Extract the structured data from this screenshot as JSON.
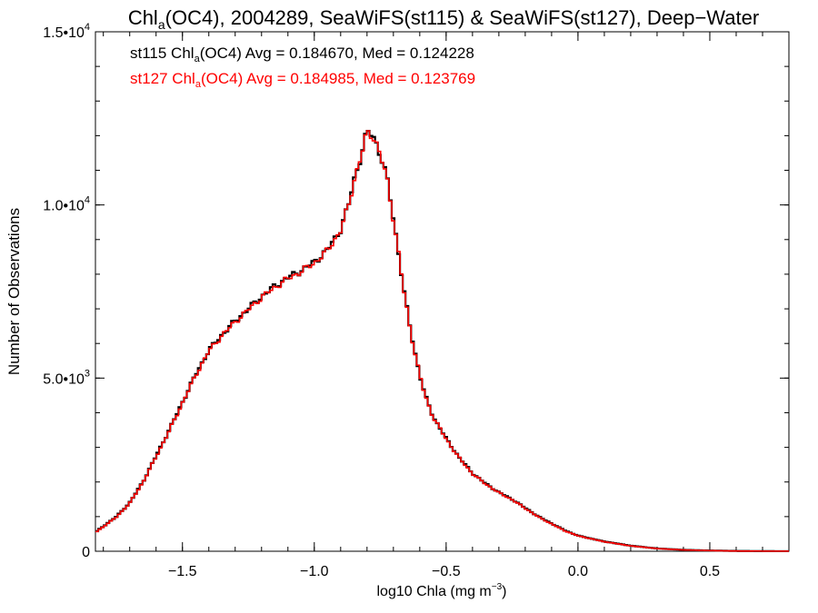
{
  "chart_data": {
    "type": "line",
    "title": {
      "pre": "Chl",
      "sub": "a",
      "post": "(OC4), 2004289, SeaWiFS(st115) & SeaWiFS(st127), Deep−Water"
    },
    "xlabel": {
      "pre": "log10 Chla (mg m",
      "sup": "−3",
      "post": ")"
    },
    "ylabel": "Number of Observations",
    "xlim": [
      -1.83,
      0.8
    ],
    "ylim": [
      0,
      15000
    ],
    "x_ticks": [
      {
        "v": -1.5,
        "label": "−1.5"
      },
      {
        "v": -1.0,
        "label": "−1.0"
      },
      {
        "v": -0.5,
        "label": "−0.5"
      },
      {
        "v": 0.0,
        "label": "0.0"
      },
      {
        "v": 0.5,
        "label": "0.5"
      }
    ],
    "y_ticks": [
      {
        "v": 0,
        "base": "0",
        "exp": ""
      },
      {
        "v": 5000,
        "base": "5.0•10",
        "exp": "3"
      },
      {
        "v": 10000,
        "base": "1.0•10",
        "exp": "4"
      },
      {
        "v": 15000,
        "base": "1.5•10",
        "exp": "4"
      }
    ],
    "annotations": [
      {
        "pre": "st115 Chl",
        "sub": "a",
        "post": "(OC4) Avg = 0.184670, Med = 0.124228",
        "color": "#000000"
      },
      {
        "pre": "st127 Chl",
        "sub": "a",
        "post": "(OC4) Avg = 0.184985, Med = 0.123769",
        "color": "#ff0000"
      }
    ],
    "series": [
      {
        "color": "#000000",
        "points": [
          [
            -1.83,
            550
          ],
          [
            -1.75,
            1000
          ],
          [
            -1.7,
            1400
          ],
          [
            -1.65,
            2000
          ],
          [
            -1.6,
            2750
          ],
          [
            -1.55,
            3500
          ],
          [
            -1.5,
            4300
          ],
          [
            -1.45,
            5100
          ],
          [
            -1.4,
            5800
          ],
          [
            -1.35,
            6250
          ],
          [
            -1.3,
            6650
          ],
          [
            -1.25,
            7000
          ],
          [
            -1.2,
            7350
          ],
          [
            -1.15,
            7650
          ],
          [
            -1.1,
            7900
          ],
          [
            -1.05,
            8100
          ],
          [
            -1.0,
            8350
          ],
          [
            -0.95,
            8700
          ],
          [
            -0.9,
            9300
          ],
          [
            -0.87,
            10000
          ],
          [
            -0.85,
            10700
          ],
          [
            -0.82,
            11500
          ],
          [
            -0.8,
            12100
          ],
          [
            -0.78,
            12050
          ],
          [
            -0.76,
            11700
          ],
          [
            -0.74,
            11200
          ],
          [
            -0.72,
            10600
          ],
          [
            -0.7,
            9600
          ],
          [
            -0.68,
            8600
          ],
          [
            -0.66,
            7500
          ],
          [
            -0.64,
            6600
          ],
          [
            -0.62,
            5800
          ],
          [
            -0.6,
            5100
          ],
          [
            -0.58,
            4500
          ],
          [
            -0.55,
            3900
          ],
          [
            -0.5,
            3250
          ],
          [
            -0.45,
            2700
          ],
          [
            -0.4,
            2250
          ],
          [
            -0.35,
            1950
          ],
          [
            -0.3,
            1700
          ],
          [
            -0.25,
            1500
          ],
          [
            -0.2,
            1250
          ],
          [
            -0.15,
            1000
          ],
          [
            -0.1,
            800
          ],
          [
            -0.05,
            600
          ],
          [
            0.0,
            450
          ],
          [
            0.1,
            280
          ],
          [
            0.2,
            160
          ],
          [
            0.3,
            80
          ],
          [
            0.4,
            40
          ],
          [
            0.5,
            20
          ],
          [
            0.6,
            8
          ],
          [
            0.7,
            3
          ],
          [
            0.8,
            1
          ]
        ]
      },
      {
        "color": "#ff0000",
        "points": [
          [
            -1.83,
            540
          ],
          [
            -1.75,
            990
          ],
          [
            -1.7,
            1390
          ],
          [
            -1.65,
            1990
          ],
          [
            -1.6,
            2730
          ],
          [
            -1.55,
            3480
          ],
          [
            -1.5,
            4280
          ],
          [
            -1.45,
            5080
          ],
          [
            -1.4,
            5780
          ],
          [
            -1.35,
            6230
          ],
          [
            -1.3,
            6620
          ],
          [
            -1.25,
            6980
          ],
          [
            -1.2,
            7330
          ],
          [
            -1.15,
            7620
          ],
          [
            -1.1,
            7870
          ],
          [
            -1.05,
            8080
          ],
          [
            -1.0,
            8320
          ],
          [
            -0.95,
            8680
          ],
          [
            -0.9,
            9270
          ],
          [
            -0.87,
            9980
          ],
          [
            -0.85,
            10680
          ],
          [
            -0.82,
            11480
          ],
          [
            -0.8,
            12080
          ],
          [
            -0.78,
            12030
          ],
          [
            -0.76,
            11690
          ],
          [
            -0.74,
            11190
          ],
          [
            -0.72,
            10590
          ],
          [
            -0.7,
            9590
          ],
          [
            -0.68,
            8590
          ],
          [
            -0.66,
            7490
          ],
          [
            -0.64,
            6590
          ],
          [
            -0.62,
            5790
          ],
          [
            -0.6,
            5090
          ],
          [
            -0.58,
            4490
          ],
          [
            -0.55,
            3890
          ],
          [
            -0.5,
            3240
          ],
          [
            -0.45,
            2690
          ],
          [
            -0.4,
            2240
          ],
          [
            -0.35,
            1940
          ],
          [
            -0.3,
            1690
          ],
          [
            -0.25,
            1490
          ],
          [
            -0.2,
            1240
          ],
          [
            -0.15,
            990
          ],
          [
            -0.1,
            790
          ],
          [
            -0.05,
            590
          ],
          [
            0.0,
            445
          ],
          [
            0.1,
            275
          ],
          [
            0.2,
            155
          ],
          [
            0.3,
            78
          ],
          [
            0.4,
            38
          ],
          [
            0.5,
            19
          ],
          [
            0.6,
            7
          ],
          [
            0.7,
            3
          ],
          [
            0.8,
            1
          ]
        ]
      }
    ]
  }
}
